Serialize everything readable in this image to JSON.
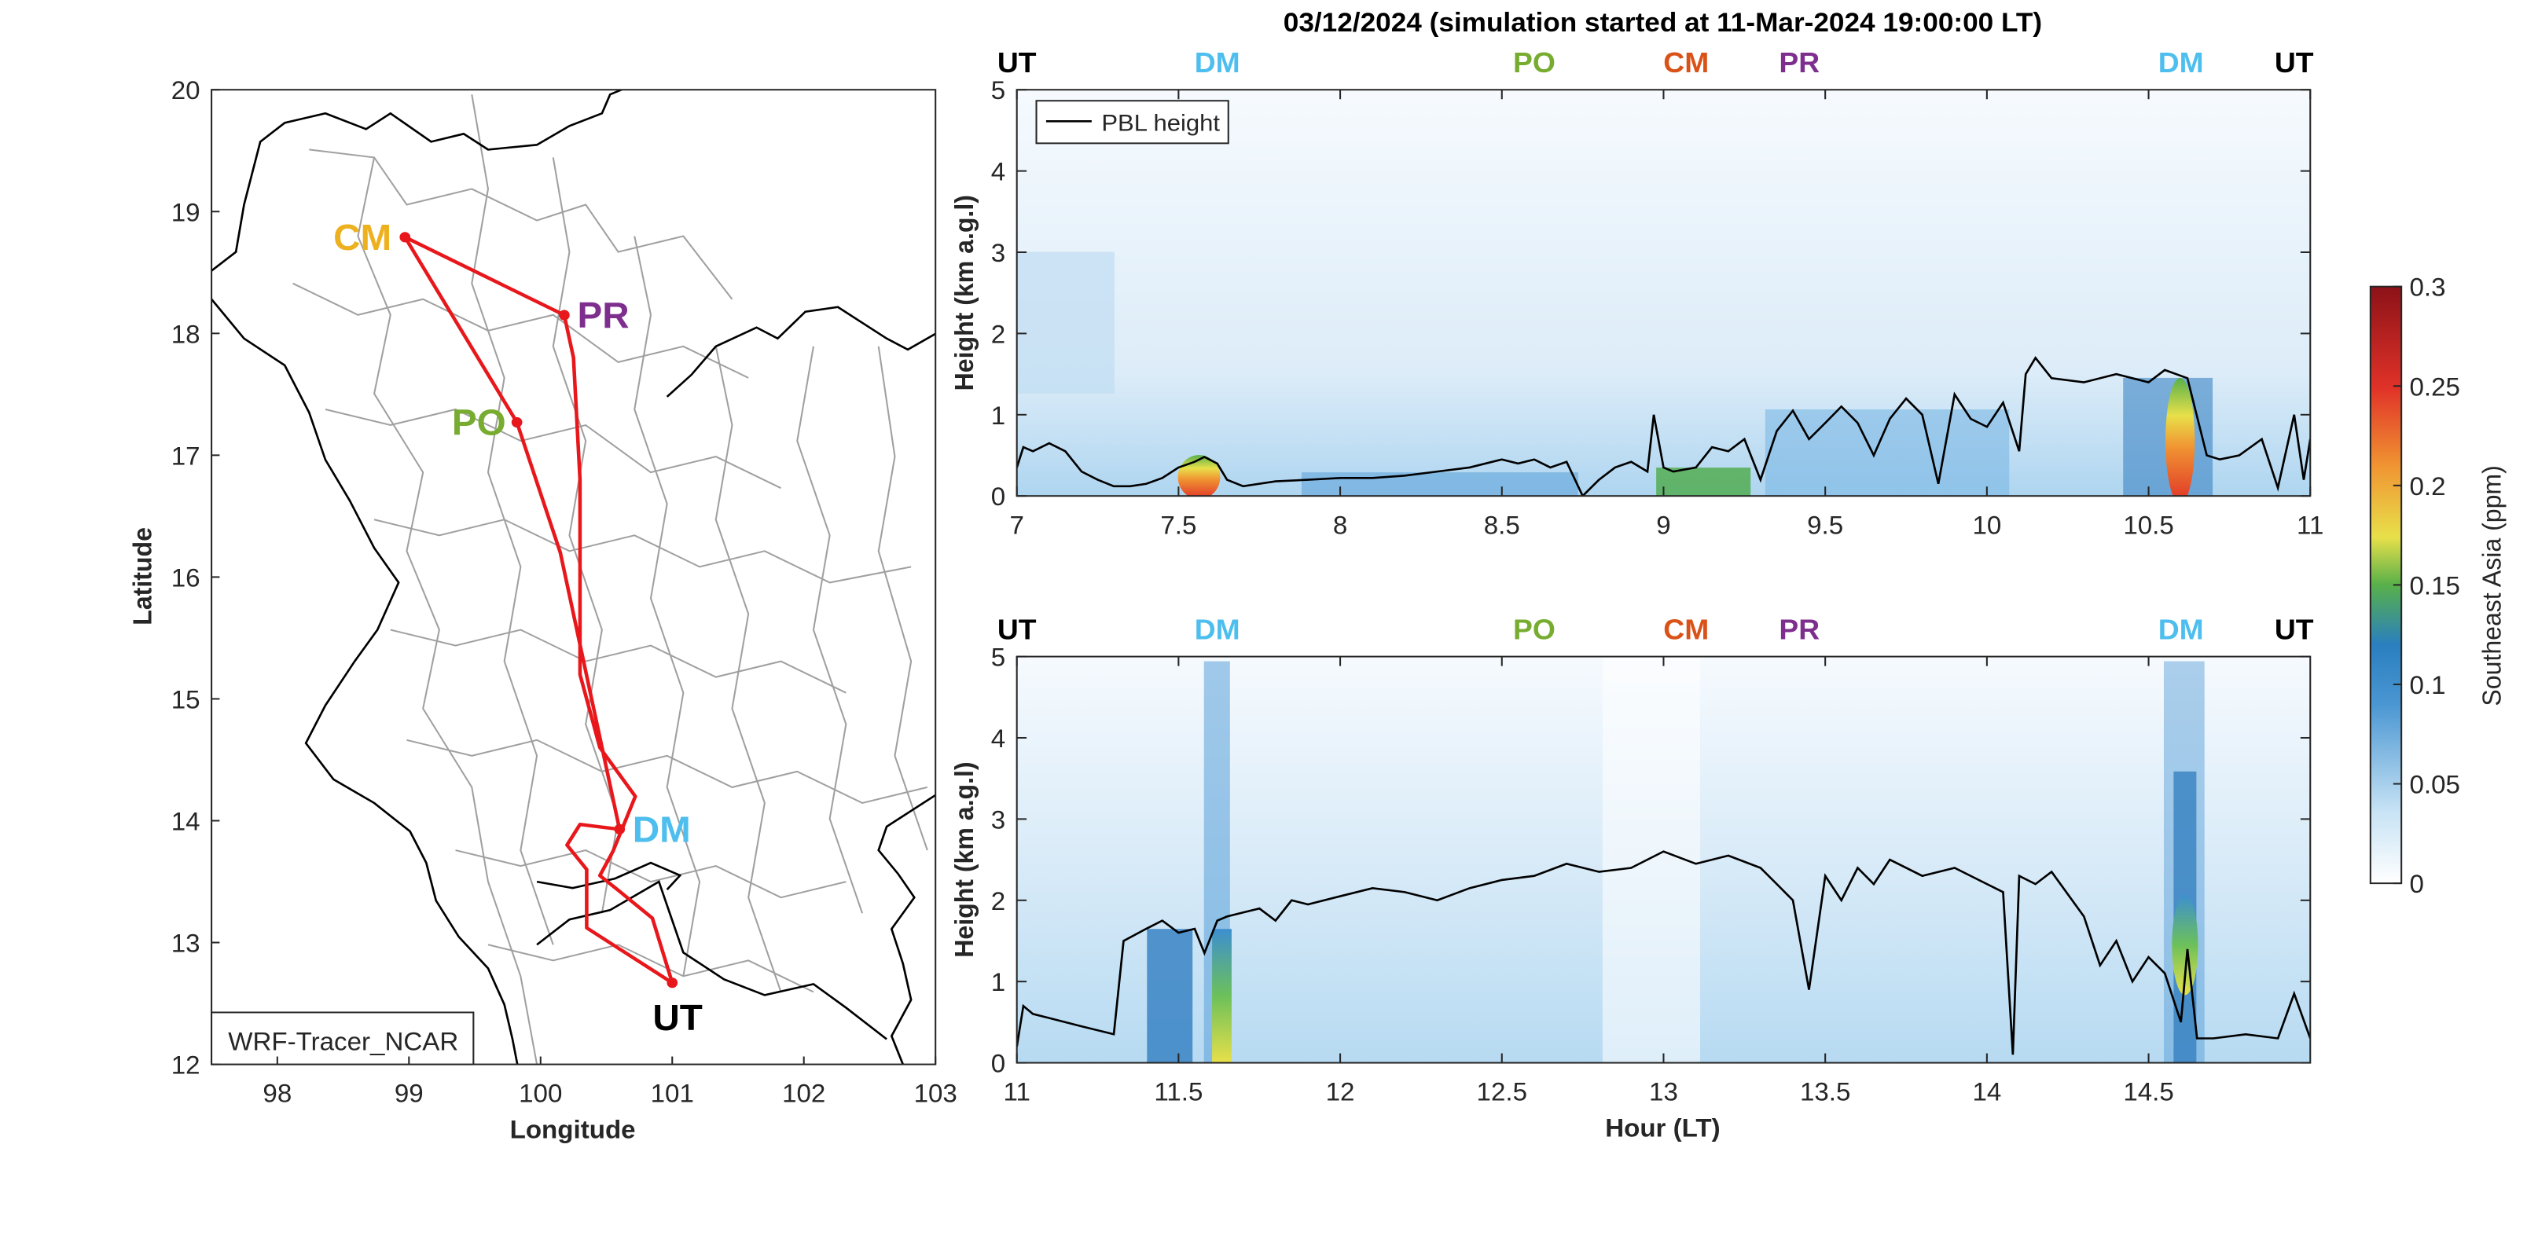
{
  "figure_title": "03/12/2024 (simulation started at 11-Mar-2024 19:00:00 LT)",
  "colors": {
    "UT": "#000000",
    "DM": "#4dbeee",
    "PO": "#77ac30",
    "CM": "#d95319",
    "PR": "#7e2f8e",
    "CM_map": "#edb120",
    "route": "#e8171b",
    "pbl": "#000000"
  },
  "map": {
    "xlabel": "Longitude",
    "ylabel": "Latitude",
    "xlim": [
      97.5,
      103
    ],
    "ylim": [
      12,
      20
    ],
    "xticks": [
      "98",
      "99",
      "100",
      "101",
      "102",
      "103"
    ],
    "yticks": [
      "12",
      "13",
      "14",
      "15",
      "16",
      "17",
      "18",
      "19",
      "20"
    ],
    "legend": "WRF-Tracer_NCAR",
    "sites": [
      {
        "code": "CM",
        "lon": 98.97,
        "lat": 18.79
      },
      {
        "code": "PR",
        "lon": 100.18,
        "lat": 18.15
      },
      {
        "code": "PO",
        "lon": 99.82,
        "lat": 17.27
      },
      {
        "code": "DM",
        "lon": 100.6,
        "lat": 13.93
      },
      {
        "code": "UT",
        "lon": 101.0,
        "lat": 12.67
      }
    ],
    "route": [
      [
        101.0,
        12.67
      ],
      [
        100.35,
        13.12
      ],
      [
        100.35,
        13.6
      ],
      [
        100.2,
        13.8
      ],
      [
        100.3,
        13.97
      ],
      [
        100.6,
        13.93
      ],
      [
        100.15,
        16.2
      ],
      [
        99.82,
        17.27
      ],
      [
        98.97,
        18.79
      ],
      [
        100.18,
        18.15
      ],
      [
        100.25,
        17.8
      ],
      [
        100.3,
        16.8
      ],
      [
        100.3,
        15.2
      ],
      [
        100.45,
        14.6
      ],
      [
        100.72,
        14.2
      ],
      [
        100.55,
        13.75
      ],
      [
        100.45,
        13.55
      ],
      [
        100.6,
        13.42
      ],
      [
        100.85,
        13.2
      ],
      [
        101.0,
        12.67
      ]
    ]
  },
  "chart_data": [
    {
      "type": "heatmap",
      "ylabel": "Height (km a.g.l)",
      "xlim": [
        7,
        11
      ],
      "ylim": [
        0,
        5
      ],
      "xticks": [
        "7",
        "7.5",
        "8",
        "8.5",
        "9",
        "9.5",
        "10",
        "10.5",
        "11"
      ],
      "yticks": [
        "0",
        "1",
        "2",
        "3",
        "4",
        "5"
      ],
      "legend": {
        "label": "PBL height",
        "position": "top-left"
      },
      "site_markers": [
        {
          "code": "UT",
          "x": 7.0
        },
        {
          "code": "DM",
          "x": 7.62
        },
        {
          "code": "PO",
          "x": 8.6
        },
        {
          "code": "CM",
          "x": 9.07
        },
        {
          "code": "PR",
          "x": 9.42
        },
        {
          "code": "DM",
          "x": 10.6
        },
        {
          "code": "UT",
          "x": 10.95
        }
      ],
      "pbl_height": {
        "x": [
          7.0,
          7.02,
          7.05,
          7.1,
          7.15,
          7.2,
          7.25,
          7.3,
          7.35,
          7.4,
          7.45,
          7.5,
          7.55,
          7.58,
          7.62,
          7.65,
          7.7,
          7.8,
          7.9,
          8.0,
          8.1,
          8.2,
          8.3,
          8.4,
          8.5,
          8.55,
          8.6,
          8.65,
          8.7,
          8.75,
          8.8,
          8.85,
          8.9,
          8.95,
          8.97,
          9.0,
          9.03,
          9.1,
          9.15,
          9.2,
          9.25,
          9.3,
          9.35,
          9.4,
          9.45,
          9.5,
          9.55,
          9.6,
          9.65,
          9.7,
          9.75,
          9.8,
          9.85,
          9.9,
          9.95,
          10.0,
          10.05,
          10.1,
          10.12,
          10.15,
          10.2,
          10.3,
          10.4,
          10.5,
          10.55,
          10.62,
          10.68,
          10.72,
          10.78,
          10.85,
          10.9,
          10.95,
          10.98,
          11.0
        ],
        "y": [
          0.35,
          0.6,
          0.55,
          0.65,
          0.55,
          0.3,
          0.2,
          0.12,
          0.12,
          0.15,
          0.22,
          0.35,
          0.42,
          0.48,
          0.4,
          0.2,
          0.12,
          0.18,
          0.2,
          0.22,
          0.22,
          0.25,
          0.3,
          0.35,
          0.45,
          0.4,
          0.45,
          0.35,
          0.42,
          0.0,
          0.2,
          0.35,
          0.42,
          0.3,
          1.0,
          0.35,
          0.3,
          0.35,
          0.6,
          0.55,
          0.7,
          0.2,
          0.8,
          1.05,
          0.7,
          0.9,
          1.1,
          0.9,
          0.5,
          0.95,
          1.2,
          1.0,
          0.15,
          1.25,
          0.95,
          0.85,
          1.15,
          0.55,
          1.5,
          1.7,
          1.45,
          1.4,
          1.5,
          1.4,
          1.55,
          1.45,
          0.5,
          0.45,
          0.5,
          0.7,
          0.1,
          1.0,
          0.2,
          0.7
        ]
      }
    },
    {
      "type": "heatmap",
      "xlabel": "Hour (LT)",
      "ylabel": "Height (km a.g.l)",
      "xlim": [
        11,
        15
      ],
      "ylim": [
        0,
        5
      ],
      "xticks": [
        "11",
        "11.5",
        "12",
        "12.5",
        "13",
        "13.5",
        "14",
        "14.5"
      ],
      "yticks": [
        "0",
        "1",
        "2",
        "3",
        "4",
        "5"
      ],
      "site_markers": [
        {
          "code": "UT",
          "x": 11.0
        },
        {
          "code": "DM",
          "x": 11.62
        },
        {
          "code": "PO",
          "x": 12.6
        },
        {
          "code": "CM",
          "x": 13.07
        },
        {
          "code": "PR",
          "x": 13.42
        },
        {
          "code": "DM",
          "x": 14.6
        },
        {
          "code": "UT",
          "x": 14.95
        }
      ],
      "pbl_height": {
        "x": [
          11.0,
          11.02,
          11.05,
          11.1,
          11.2,
          11.3,
          11.33,
          11.4,
          11.45,
          11.5,
          11.55,
          11.58,
          11.62,
          11.65,
          11.7,
          11.75,
          11.8,
          11.85,
          11.9,
          12.0,
          12.1,
          12.2,
          12.3,
          12.4,
          12.5,
          12.6,
          12.7,
          12.8,
          12.9,
          13.0,
          13.1,
          13.2,
          13.3,
          13.35,
          13.4,
          13.45,
          13.5,
          13.55,
          13.6,
          13.65,
          13.7,
          13.8,
          13.9,
          14.0,
          14.05,
          14.08,
          14.1,
          14.15,
          14.2,
          14.3,
          14.35,
          14.4,
          14.45,
          14.5,
          14.55,
          14.6,
          14.62,
          14.65,
          14.7,
          14.8,
          14.9,
          14.95,
          15.0
        ],
        "y": [
          0.2,
          0.7,
          0.6,
          0.55,
          0.45,
          0.35,
          1.5,
          1.65,
          1.75,
          1.6,
          1.65,
          1.35,
          1.75,
          1.8,
          1.85,
          1.9,
          1.75,
          2.0,
          1.95,
          2.05,
          2.15,
          2.1,
          2.0,
          2.15,
          2.25,
          2.3,
          2.45,
          2.35,
          2.4,
          2.6,
          2.45,
          2.55,
          2.4,
          2.2,
          2.0,
          0.9,
          2.3,
          2.0,
          2.4,
          2.2,
          2.5,
          2.3,
          2.4,
          2.2,
          2.1,
          0.1,
          2.3,
          2.2,
          2.35,
          1.8,
          1.2,
          1.5,
          1.0,
          1.3,
          1.1,
          0.5,
          1.4,
          0.3,
          0.3,
          0.35,
          0.3,
          0.85,
          0.3
        ]
      }
    }
  ],
  "colorbar": {
    "label": "Southeast Asia (ppm)",
    "ticks": [
      "0",
      "0.05",
      "0.1",
      "0.15",
      "0.2",
      "0.25",
      "0.3"
    ],
    "range": [
      0,
      0.3
    ]
  }
}
